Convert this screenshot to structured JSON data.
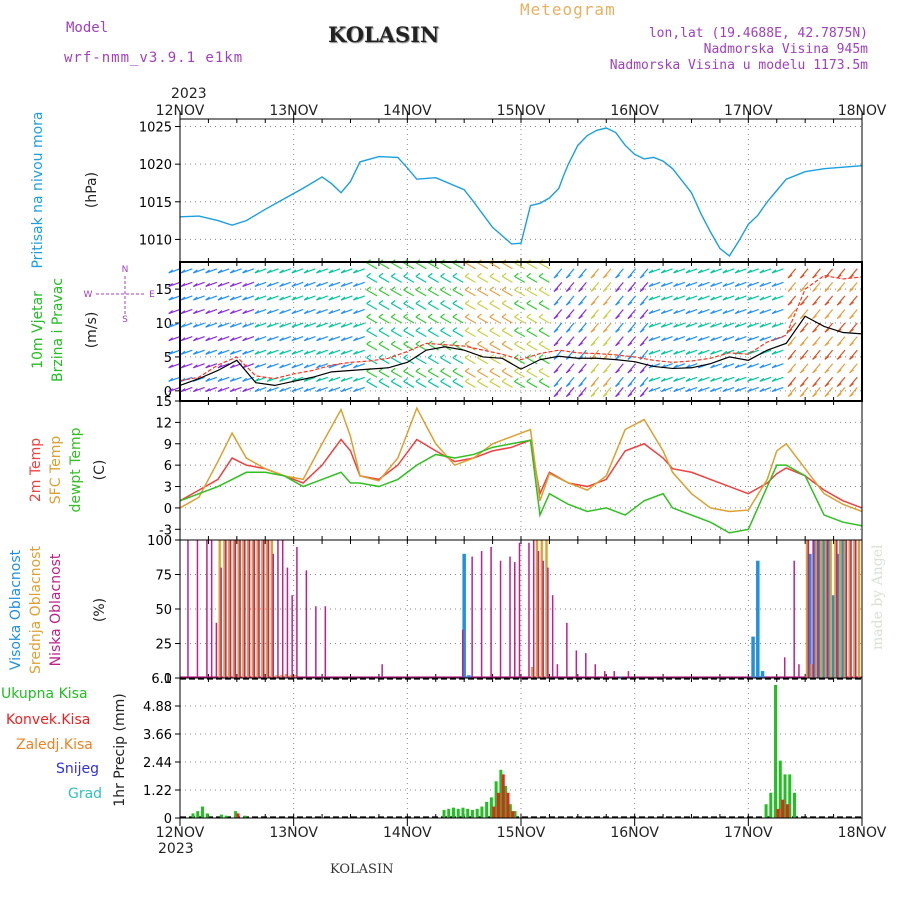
{
  "header": {
    "model_label": "Model",
    "model_name": "wrf-nmm_v3.9.1 e1km",
    "station": "KOLASIN",
    "meteogram_title": "Meteogram",
    "lonlat": "lon,lat (19.4688E, 42.7875N)",
    "elevation": "Nadmorska Visina 945m",
    "elevation_model": "Nadmorska Visina u modelu 1173.5m"
  },
  "footer": {
    "station": "KOLASIN",
    "credit": "made by Angel"
  },
  "time_axis": {
    "year": "2023",
    "days": [
      "12NOV",
      "13NOV",
      "14NOV",
      "15NOV",
      "16NOV",
      "17NOV",
      "18NOV"
    ]
  },
  "chart_data": [
    {
      "type": "line",
      "panel": "pressure",
      "ylabel_lines": [
        "Pritisak na nivou mora"
      ],
      "unit": "(hPa)",
      "ylim": [
        1007,
        1026
      ],
      "yticks": [
        1010,
        1015,
        1020,
        1025
      ],
      "xlim": [
        0,
        144
      ],
      "series": [
        {
          "name": "Pritisak na nivou mora",
          "color": "#1aa0e0",
          "x": [
            0,
            4,
            8,
            11,
            14,
            18,
            22,
            26,
            30,
            32,
            34,
            36,
            38,
            42,
            46,
            48,
            50,
            54,
            60,
            62,
            66,
            68,
            70,
            72,
            74,
            76,
            78,
            80,
            81,
            82,
            84,
            86,
            88,
            90,
            92,
            94,
            96,
            98,
            100,
            102,
            104,
            106,
            108,
            110,
            112,
            114,
            116,
            118,
            120,
            122,
            124,
            126,
            128,
            130,
            132,
            134,
            136,
            138,
            140,
            142,
            144
          ],
          "y": [
            1013,
            1013.1,
            1012.5,
            1011.9,
            1012.5,
            1014,
            1015.4,
            1016.8,
            1018.3,
            1017.4,
            1016.2,
            1017.7,
            1020.3,
            1021,
            1020.9,
            1019.5,
            1018,
            1018.2,
            1016.6,
            1015,
            1011.6,
            1010.5,
            1009.4,
            1009.5,
            1014.5,
            1014.8,
            1015.5,
            1016.8,
            1018.5,
            1020,
            1022.5,
            1023.8,
            1024.5,
            1024.8,
            1024.2,
            1022.5,
            1021.3,
            1020.7,
            1020.9,
            1020.4,
            1019.4,
            1017.8,
            1016.2,
            1013.4,
            1011,
            1008.8,
            1007.8,
            1009.8,
            1012,
            1013.2,
            1015,
            1016.5,
            1018,
            1018.5,
            1019,
            1019.2,
            1019.4,
            1019.5,
            1019.6,
            1019.7,
            1019.8
          ]
        }
      ]
    },
    {
      "type": "line",
      "panel": "wind",
      "ylabel_lines": [
        "10m Vjetar",
        "Brzina i Pravac"
      ],
      "unit": "(m/s)",
      "compass": {
        "n": "N",
        "s": "S",
        "w": "W",
        "e": "E"
      },
      "ylim": [
        -1.5,
        19
      ],
      "yticks": [
        0,
        5,
        10,
        15
      ],
      "xlim": [
        0,
        144
      ],
      "series": [
        {
          "name": "speed",
          "color": "#000000",
          "x": [
            0,
            4,
            8,
            12,
            16,
            20,
            24,
            28,
            32,
            36,
            40,
            44,
            48,
            52,
            56,
            60,
            64,
            68,
            72,
            76,
            80,
            84,
            88,
            92,
            96,
            100,
            104,
            108,
            112,
            116,
            120,
            124,
            128,
            132,
            136,
            140,
            144
          ],
          "y": [
            0.8,
            1.8,
            3,
            4.5,
            1.2,
            0.8,
            1.4,
            2,
            2.8,
            3,
            3.2,
            3.4,
            4.2,
            6,
            6.5,
            6,
            5,
            4.8,
            3.2,
            4.6,
            5.1,
            4.8,
            4.8,
            4.6,
            4.3,
            3.6,
            3.3,
            3.4,
            4,
            5,
            4.5,
            6,
            7,
            11,
            9.5,
            8.6,
            8.4
          ]
        },
        {
          "name": "gust",
          "color": "#ff3020",
          "x": [
            0,
            4,
            8,
            12,
            16,
            20,
            24,
            28,
            32,
            36,
            40,
            44,
            48,
            52,
            56,
            60,
            64,
            68,
            72,
            76,
            80,
            84,
            88,
            92,
            96,
            100,
            104,
            108,
            112,
            116,
            120,
            124,
            128,
            132,
            136,
            140,
            144
          ],
          "y": [
            1.5,
            2,
            3.8,
            5,
            2.2,
            1.8,
            2.5,
            3,
            3.8,
            4.2,
            4.4,
            4.8,
            5.8,
            7,
            6.8,
            6.6,
            6,
            5.4,
            4.6,
            5.5,
            6,
            5.6,
            5.5,
            5.3,
            5,
            4.5,
            4.2,
            4.4,
            4.8,
            5.6,
            5.4,
            7.2,
            8.2,
            15,
            17,
            16.5,
            16.8
          ]
        }
      ],
      "barb_palette": [
        "#8a2be2",
        "#1e90ff",
        "#00c8a0",
        "#32cd32",
        "#c8d040",
        "#e8a040",
        "#e05020"
      ]
    },
    {
      "type": "line",
      "panel": "temperature",
      "ylabel_lines": [
        "2m Temp",
        "SFC Temp",
        "dewpt Temp"
      ],
      "unit": "(C)",
      "ylim": [
        -4.5,
        15
      ],
      "yticks": [
        -3,
        0,
        3,
        6,
        9,
        12,
        15
      ],
      "xlim": [
        0,
        144
      ],
      "series": [
        {
          "name": "2m Temp",
          "color": "#f04040",
          "x": [
            0,
            4,
            8,
            11,
            14,
            18,
            22,
            26,
            30,
            34,
            36,
            38,
            42,
            46,
            50,
            54,
            58,
            62,
            66,
            70,
            74,
            76,
            78,
            82,
            86,
            90,
            94,
            98,
            102,
            104,
            108,
            112,
            116,
            120,
            124,
            126,
            128,
            132,
            136,
            140,
            144
          ],
          "y": [
            1,
            2.5,
            4,
            7,
            6,
            5.5,
            4.5,
            3.5,
            6,
            9.6,
            8,
            4.5,
            4,
            6,
            9.6,
            8,
            6.5,
            7,
            8,
            8.5,
            9.5,
            2,
            5,
            3.5,
            3,
            4,
            8,
            9,
            7,
            5.5,
            5,
            4,
            3,
            2,
            3.5,
            4.8,
            5.6,
            4.5,
            2.5,
            1,
            0
          ]
        },
        {
          "name": "SFC Temp",
          "color": "#dca030",
          "x": [
            0,
            4,
            8,
            11,
            14,
            18,
            22,
            26,
            30,
            34,
            36,
            38,
            42,
            46,
            50,
            54,
            58,
            62,
            66,
            70,
            74,
            76,
            78,
            82,
            86,
            90,
            94,
            98,
            102,
            104,
            108,
            112,
            116,
            120,
            124,
            126,
            128,
            132,
            136,
            140,
            144
          ],
          "y": [
            0,
            1.5,
            6.5,
            10.5,
            7,
            5.5,
            4.5,
            4,
            9,
            13.8,
            10,
            4.5,
            3.8,
            7,
            14,
            9,
            6,
            7,
            9,
            10,
            11,
            1,
            4.8,
            3.5,
            2.5,
            4.5,
            11,
            12.4,
            8,
            5,
            2,
            0,
            -0.5,
            -0.3,
            4,
            8,
            9,
            5.5,
            2,
            0.5,
            -0.5
          ]
        },
        {
          "name": "dewpt Temp",
          "color": "#30c020",
          "x": [
            0,
            4,
            8,
            11,
            14,
            18,
            22,
            26,
            30,
            34,
            36,
            38,
            42,
            46,
            50,
            54,
            58,
            62,
            66,
            70,
            74,
            76,
            78,
            82,
            86,
            90,
            94,
            98,
            102,
            104,
            108,
            112,
            116,
            120,
            124,
            126,
            128,
            132,
            136,
            140,
            144
          ],
          "y": [
            1,
            2,
            3,
            4,
            5,
            5,
            4.5,
            3,
            4,
            5,
            3.5,
            3.5,
            3,
            4,
            6,
            7.5,
            7,
            7.5,
            8.5,
            9,
            9.5,
            -1,
            2,
            0.5,
            -0.5,
            0,
            -1,
            1,
            2,
            0,
            -1,
            -2,
            -3.5,
            -3,
            3,
            6,
            6,
            4.5,
            -1,
            -2,
            -2.5
          ]
        }
      ]
    },
    {
      "type": "bar",
      "panel": "clouds",
      "ylabel_lines": [
        "Visoka Oblacnost",
        "Srednja Oblacnost",
        "Niska Oblacnost"
      ],
      "unit": "(%)",
      "ylim": [
        0,
        100
      ],
      "yticks": [
        0,
        25,
        50,
        75,
        100
      ],
      "xlim": [
        0,
        144
      ],
      "series": [
        {
          "name": "Visoka Oblacnost",
          "color": "#2090e0",
          "x": [
            60,
            61,
            93,
            121,
            122,
            123,
            133,
            134,
            135,
            136,
            137,
            138,
            139,
            140
          ],
          "values": [
            90,
            2,
            1,
            30,
            85,
            5,
            90,
            100,
            100,
            100,
            100,
            60,
            90,
            100
          ]
        },
        {
          "name": "Srednja Oblacnost",
          "color": "#e0a030",
          "x": [
            8,
            9,
            10,
            11,
            12,
            13,
            14,
            15,
            16,
            17,
            18,
            19,
            20,
            21,
            22,
            23,
            24,
            74,
            75,
            76,
            77,
            132,
            133,
            134,
            135,
            136,
            137,
            138,
            139,
            140,
            141,
            142,
            143
          ],
          "values": [
            100,
            100,
            100,
            100,
            100,
            100,
            100,
            100,
            100,
            100,
            100,
            100,
            2,
            2,
            3,
            2,
            2,
            8,
            100,
            100,
            100,
            100,
            10,
            100,
            100,
            100,
            100,
            100,
            100,
            100,
            100,
            100,
            100
          ]
        },
        {
          "name": "Niska Oblacnost",
          "color": "#c0208a",
          "x": [
            2,
            4,
            6,
            7,
            8,
            9,
            10,
            11,
            12,
            13,
            14,
            15,
            16,
            17,
            18,
            19,
            20,
            21,
            22,
            23,
            24,
            25,
            27,
            29,
            31,
            43,
            60,
            62,
            64,
            66,
            68,
            70,
            71,
            72,
            74,
            75,
            76,
            77,
            78,
            79,
            80,
            82,
            84,
            86,
            88,
            90,
            92,
            95,
            128,
            130,
            131,
            133,
            134,
            135,
            137,
            139,
            141,
            142,
            143
          ],
          "values": [
            100,
            100,
            100,
            100,
            40,
            80,
            100,
            100,
            100,
            100,
            100,
            100,
            100,
            100,
            100,
            100,
            90,
            100,
            100,
            80,
            60,
            95,
            78,
            52,
            52,
            10,
            35,
            88,
            92,
            95,
            85,
            88,
            84,
            98,
            98,
            100,
            92,
            85,
            80,
            60,
            10,
            40,
            20,
            18,
            10,
            5,
            5,
            5,
            15,
            85,
            10,
            100,
            100,
            100,
            100,
            100,
            100,
            100,
            100
          ]
        }
      ]
    },
    {
      "type": "bar",
      "panel": "precipitation",
      "ylabel_lines": [
        "1hr Precip (mm)"
      ],
      "legend": [
        "Ukupna Kisa",
        "Konvek.Kisa",
        "Zaledj.Kisa",
        "Snijeg",
        "Grad"
      ],
      "legend_colors": [
        "#20c020",
        "#f02020",
        "#f08020",
        "#3030e0",
        "#30c0c0"
      ],
      "ylim": [
        0,
        6.1
      ],
      "yticks": [
        0,
        1.22,
        2.44,
        3.66,
        4.88,
        6.1
      ],
      "xlim": [
        0,
        144
      ],
      "series": [
        {
          "name": "Ukupna Kisa",
          "color": "#20c020",
          "x": [
            3,
            4,
            5,
            6,
            9,
            10,
            12,
            14,
            56,
            57,
            58,
            59,
            60,
            61,
            62,
            63,
            64,
            65,
            66,
            67,
            68,
            69,
            70,
            71,
            124,
            125,
            126,
            127,
            128,
            129,
            130
          ],
          "values": [
            0.2,
            0.3,
            0.5,
            0.2,
            0.15,
            0.1,
            0.3,
            0.1,
            0.35,
            0.4,
            0.45,
            0.4,
            0.45,
            0.4,
            0.35,
            0.4,
            0.5,
            0.7,
            0.9,
            1.6,
            2.1,
            1.4,
            0.6,
            0.3,
            0.6,
            1.1,
            5.8,
            2.5,
            1.9,
            1.9,
            1.1
          ]
        },
        {
          "name": "Konvek.Kisa",
          "color": "#f02020",
          "x": [
            12,
            66,
            67,
            68,
            69,
            70,
            126,
            127,
            128
          ],
          "values": [
            0.2,
            0.5,
            1.1,
            1.9,
            1.1,
            0.3,
            0.4,
            0.8,
            0.6
          ]
        }
      ]
    }
  ]
}
